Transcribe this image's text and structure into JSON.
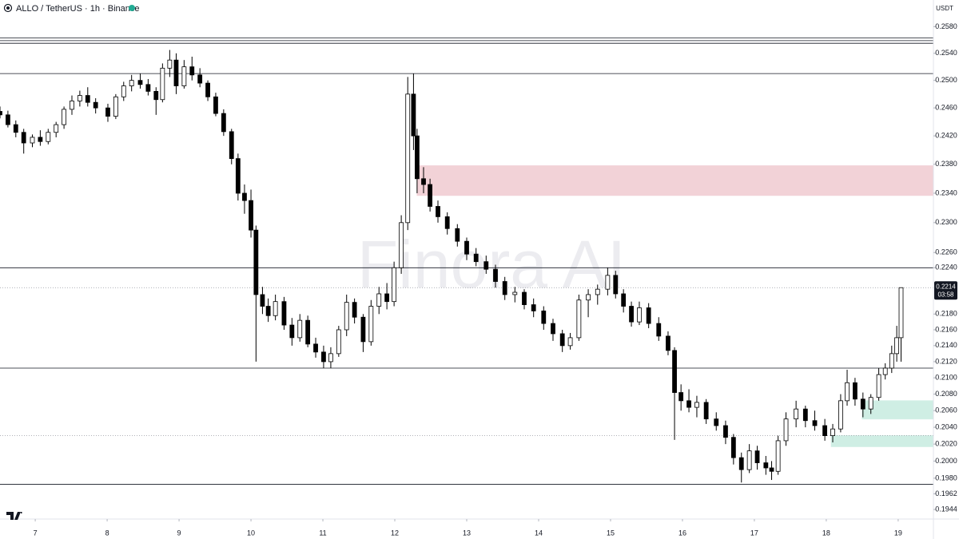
{
  "chart_data": {
    "type": "candlestick",
    "title": "ALLO / TetherUS · 1h · Binance",
    "currency": "USDT",
    "watermark": "Finora AI",
    "current_price": 0.2214,
    "countdown": "03:58",
    "log_scale": true,
    "up_color": "#ffffff",
    "down_color": "#000000",
    "wick_color": "#000000",
    "x": [
      6.51,
      6.62,
      6.73,
      6.84,
      6.96,
      7.07,
      7.18,
      7.29,
      7.4,
      7.51,
      7.62,
      7.73,
      7.84,
      8.01,
      8.12,
      8.23,
      8.34,
      8.46,
      8.57,
      8.68,
      8.77,
      8.87,
      8.96,
      9.07,
      9.18,
      9.29,
      9.4,
      9.51,
      9.62,
      9.73,
      9.82,
      9.91,
      10.0,
      10.07,
      10.16,
      10.24,
      10.34,
      10.46,
      10.57,
      10.68,
      10.79,
      10.9,
      11.01,
      11.11,
      11.22,
      11.33,
      11.44,
      11.56,
      11.67,
      11.78,
      11.89,
      11.99,
      12.09,
      12.18,
      12.26,
      12.31,
      12.4,
      12.49,
      12.6,
      12.73,
      12.87,
      13.0,
      13.13,
      13.27,
      13.4,
      13.53,
      13.67,
      13.8,
      13.93,
      14.07,
      14.2,
      14.33,
      14.44,
      14.56,
      14.69,
      14.82,
      14.96,
      15.07,
      15.18,
      15.29,
      15.4,
      15.53,
      15.67,
      15.8,
      15.89,
      15.98,
      16.09,
      16.2,
      16.33,
      16.47,
      16.6,
      16.71,
      16.82,
      16.93,
      17.04,
      17.16,
      17.24,
      17.33,
      17.44,
      17.58,
      17.71,
      17.84,
      17.98,
      18.09,
      18.2,
      18.29,
      18.4,
      18.51,
      18.62,
      18.73,
      18.82,
      18.91,
      18.98,
      19.04
    ],
    "open": [
      0.2455,
      0.245,
      0.2436,
      0.2425,
      0.241,
      0.2418,
      0.2412,
      0.2425,
      0.2436,
      0.2458,
      0.247,
      0.2478,
      0.2468,
      0.246,
      0.2448,
      0.2476,
      0.2492,
      0.25,
      0.2494,
      0.2484,
      0.2472,
      0.2518,
      0.253,
      0.2492,
      0.252,
      0.2508,
      0.2496,
      0.2476,
      0.2452,
      0.2426,
      0.2388,
      0.234,
      0.233,
      0.229,
      0.2205,
      0.219,
      0.2178,
      0.2196,
      0.2166,
      0.215,
      0.2172,
      0.2142,
      0.2132,
      0.212,
      0.213,
      0.216,
      0.2195,
      0.2176,
      0.2145,
      0.219,
      0.2206,
      0.2196,
      0.224,
      0.23,
      0.248,
      0.242,
      0.236,
      0.2352,
      0.2322,
      0.2308,
      0.2292,
      0.2275,
      0.2258,
      0.2248,
      0.2238,
      0.2222,
      0.2205,
      0.2208,
      0.2192,
      0.2184,
      0.2168,
      0.2155,
      0.214,
      0.215,
      0.2198,
      0.2205,
      0.2212,
      0.223,
      0.2206,
      0.219,
      0.217,
      0.2188,
      0.2168,
      0.2152,
      0.2134,
      0.2082,
      0.2072,
      0.2064,
      0.207,
      0.205,
      0.2042,
      0.2028,
      0.2004,
      0.199,
      0.2012,
      0.1998,
      0.1992,
      0.1988,
      0.2024,
      0.205,
      0.2062,
      0.2048,
      0.2042,
      0.203,
      0.2038,
      0.2072,
      0.2094,
      0.2074,
      0.2062,
      0.2076,
      0.2104,
      0.2112,
      0.213,
      0.215
    ],
    "high": [
      0.2462,
      0.2456,
      0.2442,
      0.243,
      0.2422,
      0.2428,
      0.243,
      0.244,
      0.2462,
      0.2478,
      0.2485,
      0.249,
      0.2474,
      0.2466,
      0.248,
      0.2498,
      0.2508,
      0.251,
      0.2502,
      0.249,
      0.2525,
      0.2545,
      0.254,
      0.253,
      0.2535,
      0.2518,
      0.25,
      0.2482,
      0.2458,
      0.243,
      0.2395,
      0.2352,
      0.2345,
      0.2296,
      0.2215,
      0.22,
      0.2205,
      0.2202,
      0.2175,
      0.218,
      0.2178,
      0.215,
      0.214,
      0.2138,
      0.2165,
      0.2205,
      0.22,
      0.218,
      0.2198,
      0.2215,
      0.222,
      0.2248,
      0.231,
      0.2505,
      0.251,
      0.243,
      0.2376,
      0.236,
      0.233,
      0.2314,
      0.2298,
      0.228,
      0.2266,
      0.2256,
      0.2244,
      0.2228,
      0.2215,
      0.2212,
      0.22,
      0.219,
      0.2174,
      0.216,
      0.2156,
      0.2205,
      0.2212,
      0.2218,
      0.224,
      0.2236,
      0.2212,
      0.2196,
      0.2196,
      0.2194,
      0.2176,
      0.2158,
      0.2138,
      0.2092,
      0.2086,
      0.2078,
      0.2074,
      0.2058,
      0.2048,
      0.2032,
      0.201,
      0.202,
      0.2018,
      0.2006,
      0.2,
      0.203,
      0.2058,
      0.2072,
      0.2066,
      0.206,
      0.205,
      0.2044,
      0.208,
      0.211,
      0.21,
      0.2082,
      0.208,
      0.2112,
      0.2118,
      0.214,
      0.2165,
      0.2214
    ],
    "low": [
      0.2445,
      0.2432,
      0.2418,
      0.2395,
      0.2404,
      0.2406,
      0.2408,
      0.2418,
      0.243,
      0.245,
      0.2462,
      0.2462,
      0.2452,
      0.244,
      0.2444,
      0.247,
      0.2484,
      0.2488,
      0.2478,
      0.245,
      0.2468,
      0.2505,
      0.248,
      0.2488,
      0.25,
      0.249,
      0.247,
      0.2448,
      0.242,
      0.238,
      0.233,
      0.2312,
      0.228,
      0.212,
      0.218,
      0.217,
      0.2172,
      0.216,
      0.214,
      0.2145,
      0.2138,
      0.2125,
      0.2112,
      0.2112,
      0.2126,
      0.2152,
      0.2168,
      0.2132,
      0.214,
      0.218,
      0.2186,
      0.219,
      0.2232,
      0.229,
      0.24,
      0.234,
      0.234,
      0.2315,
      0.23,
      0.2284,
      0.2268,
      0.225,
      0.2242,
      0.2232,
      0.2214,
      0.2198,
      0.2195,
      0.2186,
      0.2176,
      0.216,
      0.2146,
      0.2132,
      0.2135,
      0.2146,
      0.2176,
      0.2192,
      0.2204,
      0.22,
      0.2182,
      0.2164,
      0.2166,
      0.2162,
      0.2146,
      0.2128,
      0.2025,
      0.206,
      0.2058,
      0.2052,
      0.2044,
      0.2036,
      0.202,
      0.1996,
      0.1975,
      0.1986,
      0.199,
      0.1984,
      0.1978,
      0.1984,
      0.2018,
      0.204,
      0.204,
      0.2036,
      0.2024,
      0.2022,
      0.2034,
      0.2066,
      0.2066,
      0.2052,
      0.2056,
      0.2072,
      0.2098,
      0.2106,
      0.212,
      0.212
    ],
    "close": [
      0.245,
      0.2436,
      0.2425,
      0.241,
      0.2418,
      0.2412,
      0.2425,
      0.2436,
      0.2458,
      0.247,
      0.2478,
      0.2468,
      0.246,
      0.2448,
      0.2476,
      0.2492,
      0.25,
      0.2494,
      0.2484,
      0.2472,
      0.2518,
      0.253,
      0.2492,
      0.252,
      0.2508,
      0.2496,
      0.2476,
      0.2452,
      0.2426,
      0.2388,
      0.234,
      0.233,
      0.229,
      0.2205,
      0.219,
      0.2178,
      0.2196,
      0.2166,
      0.215,
      0.2172,
      0.2142,
      0.2132,
      0.212,
      0.213,
      0.216,
      0.2195,
      0.2176,
      0.2145,
      0.219,
      0.2206,
      0.2196,
      0.224,
      0.23,
      0.248,
      0.242,
      0.236,
      0.2352,
      0.2322,
      0.2308,
      0.2292,
      0.2275,
      0.2258,
      0.2248,
      0.2238,
      0.2222,
      0.2205,
      0.2208,
      0.2192,
      0.2184,
      0.2168,
      0.2155,
      0.214,
      0.215,
      0.2198,
      0.2205,
      0.2212,
      0.223,
      0.2206,
      0.219,
      0.217,
      0.2188,
      0.2168,
      0.2152,
      0.2134,
      0.2082,
      0.2072,
      0.2064,
      0.207,
      0.205,
      0.2042,
      0.2028,
      0.2004,
      0.199,
      0.2012,
      0.1998,
      0.1992,
      0.1988,
      0.2024,
      0.205,
      0.2062,
      0.2048,
      0.2042,
      0.203,
      0.2038,
      0.2072,
      0.2094,
      0.2074,
      0.2062,
      0.2076,
      0.2104,
      0.2112,
      0.213,
      0.215,
      0.2214
    ],
    "hlines": [
      0.2563,
      0.2559,
      0.2555,
      0.251,
      0.224,
      0.2112,
      0.1973
    ],
    "hline_color": "#131722",
    "dotted_lines": [
      0.203
    ],
    "dotted_color": "#9598a1",
    "zones": [
      {
        "from": 12.31,
        "low": 0.2337,
        "high": 0.2378,
        "color": "#f2d2d7"
      },
      {
        "from": 18.5,
        "low": 0.205,
        "high": 0.2072,
        "color": "#cfeee4"
      },
      {
        "from": 18.07,
        "low": 0.2017,
        "high": 0.203,
        "color": "#cfeee4"
      }
    ],
    "xlim": [
      6.51,
      19.49
    ],
    "xticks": [
      7,
      8,
      9,
      10,
      11,
      12,
      13,
      14,
      15,
      16,
      17,
      18,
      19
    ],
    "ylim": [
      0.1935,
      0.2595
    ],
    "yticks": [
      {
        "value": 0.258,
        "label": "0.2580"
      },
      {
        "value": 0.254,
        "label": "0.2540"
      },
      {
        "value": 0.25,
        "label": "0.2500"
      },
      {
        "value": 0.246,
        "label": "0.2460"
      },
      {
        "value": 0.242,
        "label": "0.2420"
      },
      {
        "value": 0.238,
        "label": "0.2380"
      },
      {
        "value": 0.234,
        "label": "0.2340"
      },
      {
        "value": 0.23,
        "label": "0.2300"
      },
      {
        "value": 0.226,
        "label": "0.2260"
      },
      {
        "value": 0.224,
        "label": "0.2240"
      },
      {
        "value": 0.218,
        "label": "0.2180"
      },
      {
        "value": 0.216,
        "label": "0.2160"
      },
      {
        "value": 0.214,
        "label": "0.2140"
      },
      {
        "value": 0.212,
        "label": "0.2120"
      },
      {
        "value": 0.21,
        "label": "0.2100"
      },
      {
        "value": 0.208,
        "label": "0.2080"
      },
      {
        "value": 0.206,
        "label": "0.2060"
      },
      {
        "value": 0.204,
        "label": "0.2040"
      },
      {
        "value": 0.202,
        "label": "0.2020"
      },
      {
        "value": 0.2,
        "label": "0.2000"
      },
      {
        "value": 0.198,
        "label": "0.1980"
      },
      {
        "value": 0.1962,
        "label": "0.1962"
      },
      {
        "value": 0.1944,
        "label": "0.1944"
      }
    ]
  }
}
